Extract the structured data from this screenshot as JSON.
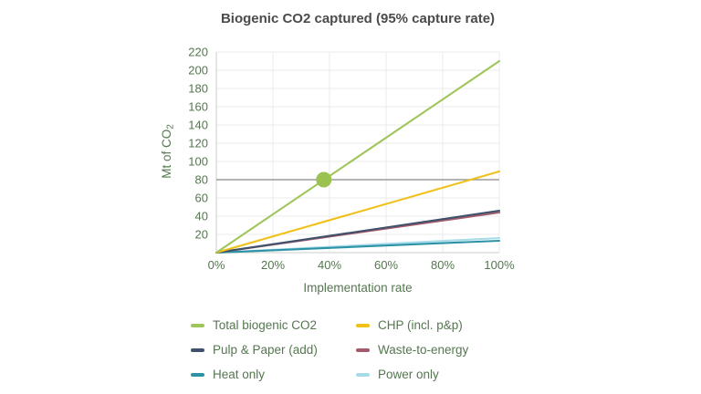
{
  "chart_data": {
    "type": "line",
    "title": "Biogenic CO2 captured (95% capture rate)",
    "xlabel": "Implementation rate",
    "ylabel": "Mt of CO2",
    "ylabel_rich": {
      "base": "Mt of CO",
      "subscript": "2"
    },
    "xlim": [
      0,
      100
    ],
    "ylim": [
      0,
      220
    ],
    "grid": true,
    "legend_position": "bottom",
    "x_ticks": [
      {
        "value": 0,
        "label": "0%"
      },
      {
        "value": 20,
        "label": "20%"
      },
      {
        "value": 40,
        "label": "40%"
      },
      {
        "value": 60,
        "label": "60%"
      },
      {
        "value": 80,
        "label": "80%"
      },
      {
        "value": 100,
        "label": "100%"
      }
    ],
    "y_ticks": [
      {
        "value": 20,
        "label": "20"
      },
      {
        "value": 40,
        "label": "40"
      },
      {
        "value": 60,
        "label": "60"
      },
      {
        "value": 80,
        "label": "80"
      },
      {
        "value": 100,
        "label": "100"
      },
      {
        "value": 120,
        "label": "120"
      },
      {
        "value": 140,
        "label": "140"
      },
      {
        "value": 160,
        "label": "160"
      },
      {
        "value": 180,
        "label": "180"
      },
      {
        "value": 200,
        "label": "200"
      },
      {
        "value": 220,
        "label": "220"
      }
    ],
    "x": [
      0,
      100
    ],
    "series": [
      {
        "name": "Total biogenic CO2",
        "color": "#a0c55a",
        "values": [
          0,
          210
        ]
      },
      {
        "name": "CHP (incl. p&p)",
        "color": "#f0c119",
        "values": [
          0,
          89
        ]
      },
      {
        "name": "Pulp & Paper (add)",
        "color": "#40526b",
        "values": [
          0,
          46
        ]
      },
      {
        "name": "Waste-to-energy",
        "color": "#a45b6b",
        "values": [
          0,
          44
        ]
      },
      {
        "name": "Heat only",
        "color": "#2c93a7",
        "values": [
          0,
          13
        ]
      },
      {
        "name": "Power only",
        "color": "#a7dbe9",
        "values": [
          0,
          16
        ]
      }
    ],
    "reference_line": {
      "y": 80,
      "color": "#9b9b9b"
    },
    "marker": {
      "x": 38,
      "y": 80,
      "color": "#9bc251",
      "series": "Total biogenic CO2"
    }
  },
  "style": {
    "background": "#ffffff",
    "title_color": "#4b4b4b",
    "text_color": "#557750",
    "grid_color": "#ebebeb",
    "axis_color": "#d6d6d6",
    "reference_line_color": "#9b9b9b",
    "marker_color": "#9bc251"
  }
}
